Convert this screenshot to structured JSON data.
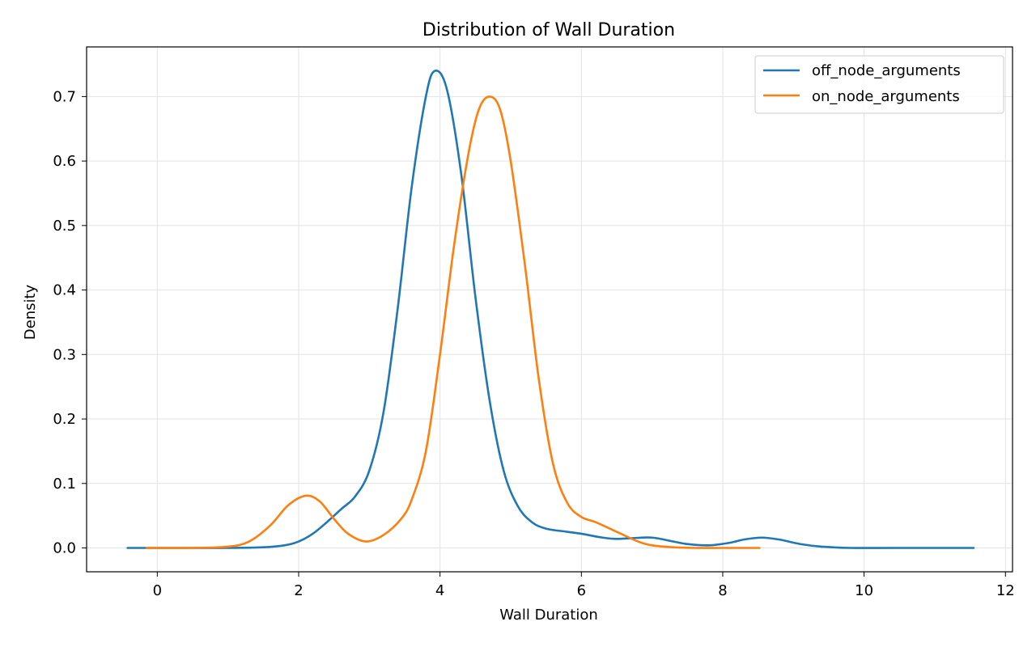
{
  "chart_data": {
    "type": "line",
    "title": "Distribution of Wall Duration",
    "xlabel": "Wall Duration",
    "ylabel": "Density",
    "xlim": [
      -1.0,
      12.1
    ],
    "ylim": [
      -0.037,
      0.777
    ],
    "xticks": [
      0,
      2,
      4,
      6,
      8,
      10,
      12
    ],
    "yticks": [
      0.0,
      0.1,
      0.2,
      0.3,
      0.4,
      0.5,
      0.6,
      0.7
    ],
    "xtick_labels": [
      "0",
      "2",
      "4",
      "6",
      "8",
      "10",
      "12"
    ],
    "ytick_labels": [
      "0.0",
      "0.1",
      "0.2",
      "0.3",
      "0.4",
      "0.5",
      "0.6",
      "0.7"
    ],
    "grid": true,
    "legend_position": "top-right",
    "series": [
      {
        "name": "off_node_arguments",
        "color": "#1f77b4",
        "x": [
          -0.42,
          0.5,
          1.0,
          1.5,
          1.8,
          2.0,
          2.2,
          2.4,
          2.6,
          2.8,
          3.0,
          3.2,
          3.4,
          3.6,
          3.8,
          3.93,
          4.1,
          4.3,
          4.5,
          4.7,
          4.9,
          5.1,
          5.3,
          5.5,
          5.8,
          6.0,
          6.3,
          6.5,
          6.7,
          7.0,
          7.3,
          7.5,
          7.8,
          8.1,
          8.3,
          8.55,
          8.8,
          9.1,
          9.4,
          9.8,
          10.5,
          11.55
        ],
        "y": [
          0.0,
          0.0,
          0.0,
          0.001,
          0.004,
          0.01,
          0.022,
          0.04,
          0.06,
          0.08,
          0.12,
          0.21,
          0.37,
          0.56,
          0.7,
          0.74,
          0.71,
          0.58,
          0.39,
          0.23,
          0.12,
          0.065,
          0.04,
          0.03,
          0.025,
          0.022,
          0.016,
          0.014,
          0.015,
          0.016,
          0.01,
          0.006,
          0.004,
          0.008,
          0.013,
          0.016,
          0.013,
          0.006,
          0.002,
          0.0,
          0.0,
          0.0
        ]
      },
      {
        "name": "on_node_arguments",
        "color": "#ff7f0e",
        "x": [
          -0.15,
          0.5,
          1.0,
          1.3,
          1.6,
          1.85,
          2.1,
          2.3,
          2.5,
          2.7,
          2.95,
          3.2,
          3.45,
          3.6,
          3.8,
          4.0,
          4.2,
          4.4,
          4.55,
          4.7,
          4.85,
          5.0,
          5.2,
          5.4,
          5.6,
          5.8,
          6.0,
          6.2,
          6.5,
          6.8,
          7.0,
          7.3,
          7.6,
          8.0,
          8.52
        ],
        "y": [
          0.0,
          0.0,
          0.002,
          0.01,
          0.035,
          0.066,
          0.081,
          0.072,
          0.045,
          0.022,
          0.01,
          0.02,
          0.045,
          0.075,
          0.15,
          0.3,
          0.47,
          0.61,
          0.68,
          0.7,
          0.68,
          0.6,
          0.44,
          0.26,
          0.13,
          0.07,
          0.048,
          0.04,
          0.025,
          0.01,
          0.004,
          0.001,
          0.0,
          0.0,
          0.0
        ]
      }
    ]
  }
}
